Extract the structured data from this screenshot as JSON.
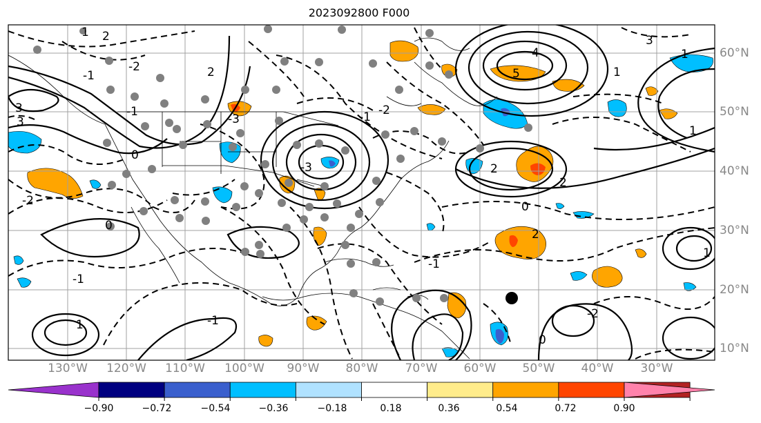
{
  "title": "2023092800 F000",
  "lat_labels": [
    "60°N",
    "50°N",
    "40°N",
    "30°N",
    "20°N",
    "10°N"
  ],
  "lon_labels": [
    "130°W",
    "120°W",
    "110°W",
    "100°W",
    "90°W",
    "80°W",
    "70°W",
    "60°W",
    "50°W",
    "40°W",
    "30°W"
  ],
  "colorbar": {
    "ticks": [
      "−0.90",
      "−0.72",
      "−0.54",
      "−0.36",
      "−0.18",
      "0.18",
      "0.36",
      "0.54",
      "0.72",
      "0.90"
    ],
    "colors": [
      "#9932cc",
      "#000080",
      "#3a5fcd",
      "#00bfff",
      "#b0e2ff",
      "#ffffff",
      "#ffec8b",
      "#ffa500",
      "#ff4500",
      "#b22222",
      "#ff82ab"
    ]
  },
  "contour_labels": [
    "3",
    "2",
    "2",
    "1",
    "0",
    "-1",
    "-2",
    "-3",
    "4",
    "5",
    "3",
    "2",
    "1",
    "-1",
    "-2",
    "-3",
    "0",
    "1",
    "2",
    "-2",
    "-1",
    "0",
    "1",
    "-1",
    "1",
    "0",
    "2",
    "3",
    "-1",
    "-2",
    "-1",
    "1"
  ],
  "palette": {
    "orange": "#ffa500",
    "red": "#ff4500",
    "cyan": "#00bfff",
    "blue": "#3a5fcd"
  }
}
